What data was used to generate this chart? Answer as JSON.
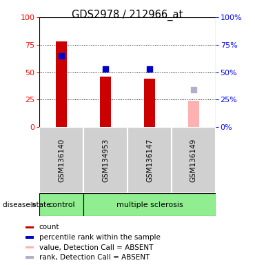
{
  "title": "GDS2978 / 212966_at",
  "samples": [
    "GSM136140",
    "GSM134953",
    "GSM136147",
    "GSM136149"
  ],
  "bar_values": [
    78,
    46,
    44,
    0
  ],
  "bar_color": "#cc0000",
  "absent_bar_values": [
    0,
    0,
    0,
    24
  ],
  "absent_bar_color": "#ffb0b0",
  "rank_values": [
    65,
    53,
    53,
    0
  ],
  "rank_color": "#0000cc",
  "absent_rank_values": [
    0,
    0,
    0,
    34
  ],
  "absent_rank_color": "#b0b0cc",
  "ylim": [
    0,
    100
  ],
  "yticks": [
    0,
    25,
    50,
    75,
    100
  ],
  "legend_items": [
    {
      "label": "count",
      "color": "#cc0000"
    },
    {
      "label": "percentile rank within the sample",
      "color": "#0000cc"
    },
    {
      "label": "value, Detection Call = ABSENT",
      "color": "#ffb0b0"
    },
    {
      "label": "rank, Detection Call = ABSENT",
      "color": "#b0b0cc"
    }
  ],
  "bar_width": 0.25,
  "marker_size": 6,
  "cell_gray": "#d0d0d0",
  "group_green": "#90ee90"
}
